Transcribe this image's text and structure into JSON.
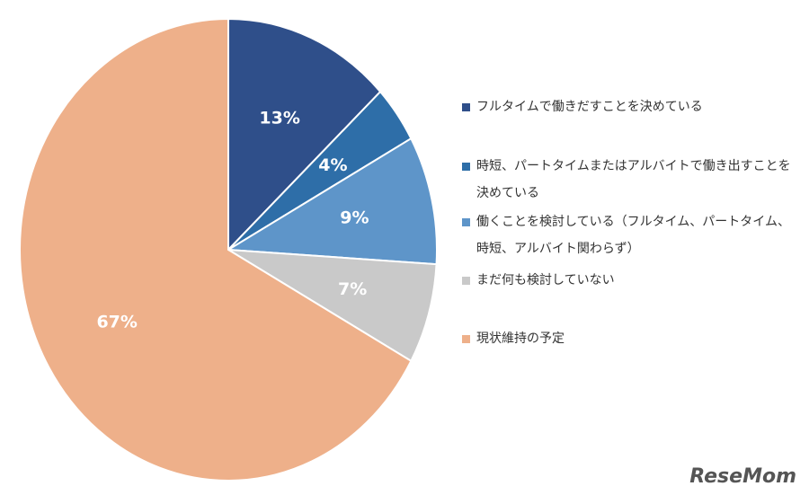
{
  "chart_data": {
    "type": "pie",
    "categories": [
      "フルタイムで働きだすことを決めている",
      "時短、パートタイムまたはアルバイトで働き出すことを決めている",
      "働くことを検討している（フルタイム、パートタイム、時短、アルバイト関わらず）",
      "まだ何も検討していない",
      "現状維持の予定"
    ],
    "values": [
      13,
      4,
      9,
      7,
      67
    ],
    "value_labels": [
      "13%",
      "4%",
      "9%",
      "7%",
      "67%"
    ],
    "colors": [
      "#2f4f8a",
      "#2e6ea8",
      "#5e95c9",
      "#c9c9c9",
      "#eeb08a"
    ],
    "legend": "right"
  },
  "watermark": "ReseMom"
}
